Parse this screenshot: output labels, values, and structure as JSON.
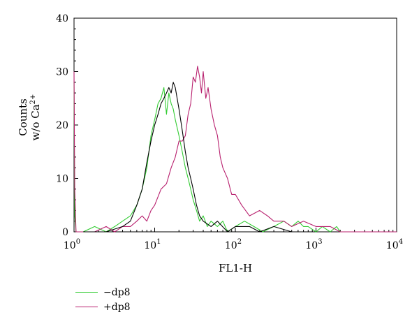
{
  "chart_data": {
    "type": "line",
    "xlabel": "FL1-H",
    "ylabel_line1": "Counts",
    "ylabel_line2_main": "w/o Ca",
    "ylabel_line2_sup": "2+",
    "x_scale": "log",
    "xlim": [
      1,
      10000
    ],
    "ylim": [
      0,
      40
    ],
    "y_ticks": [
      "0",
      "10",
      "20",
      "30",
      "40"
    ],
    "x_ticks": [
      {
        "base": "10",
        "exp": "0",
        "value": 1
      },
      {
        "base": "10",
        "exp": "1",
        "value": 10
      },
      {
        "base": "10",
        "exp": "2",
        "value": 100
      },
      {
        "base": "10",
        "exp": "3",
        "value": 1000
      },
      {
        "base": "10",
        "exp": "4",
        "value": 10000
      }
    ],
    "series": [
      {
        "name": "−dp8",
        "color": "#33cc33",
        "x": [
          1.0,
          1.02,
          1.06,
          1.3,
          1.8,
          2.5,
          3.2,
          4.0,
          5.0,
          6.0,
          7.0,
          8.0,
          9.0,
          10.0,
          11.0,
          12.0,
          13.0,
          14.0,
          15.0,
          16.0,
          17.0,
          18.0,
          20.0,
          22.0,
          24.0,
          26.0,
          28.0,
          30.0,
          33.0,
          36.0,
          40.0,
          45.0,
          50.0,
          60.0,
          70.0,
          80.0,
          100.0,
          130.0,
          170.0,
          220.0,
          300.0,
          400.0,
          500.0,
          600.0,
          700.0,
          800.0,
          1000.0,
          1200.0,
          1500.0,
          1800.0,
          2000.0
        ],
        "y": [
          28,
          3,
          0,
          0,
          1,
          0,
          1,
          2,
          3,
          5,
          8,
          12,
          18,
          21,
          24,
          25,
          27,
          22,
          26,
          24,
          23,
          21,
          18,
          15,
          12,
          10,
          8,
          6,
          4,
          2,
          3,
          1,
          2,
          1,
          2,
          0,
          1,
          2,
          1,
          0,
          1,
          2,
          1,
          2,
          1,
          1,
          0,
          1,
          0,
          1,
          0
        ]
      },
      {
        "name": "+dp8",
        "color": "#b8206e",
        "x": [
          1.0,
          1.02,
          1.06,
          1.3,
          1.8,
          2.5,
          3.2,
          4.0,
          5.0,
          6.0,
          7.0,
          8.0,
          9.0,
          10.0,
          12.0,
          14.0,
          16.0,
          18.0,
          20.0,
          22.0,
          24.0,
          26.0,
          28.0,
          30.0,
          32.0,
          34.0,
          36.0,
          38.0,
          40.0,
          43.0,
          46.0,
          50.0,
          55.0,
          60.0,
          65.0,
          70.0,
          80.0,
          90.0,
          100.0,
          120.0,
          150.0,
          200.0,
          250.0,
          300.0,
          400.0,
          500.0,
          700.0,
          1000.0,
          1500.0,
          2000.0,
          3000.0,
          5000.0,
          10000.0
        ],
        "y": [
          30,
          8,
          0,
          0,
          0,
          1,
          0,
          1,
          1,
          2,
          3,
          2,
          4,
          5,
          8,
          9,
          12,
          14,
          17,
          17,
          18,
          22,
          24,
          29,
          28,
          31,
          29,
          26,
          30,
          25,
          27,
          23,
          20,
          18,
          14,
          12,
          10,
          7,
          7,
          5,
          3,
          4,
          3,
          2,
          2,
          1,
          2,
          1,
          1,
          0,
          0,
          0,
          0
        ]
      },
      {
        "name": "",
        "color": "#000000",
        "x": [
          1.3,
          2.5,
          4.0,
          5.0,
          6.0,
          7.0,
          8.0,
          9.0,
          10.0,
          11.0,
          12.0,
          13.0,
          14.0,
          15.0,
          16.0,
          17.0,
          18.0,
          20.0,
          22.0,
          24.0,
          26.0,
          28.0,
          30.0,
          33.0,
          36.0,
          40.0,
          50.0,
          60.0,
          80.0,
          100.0,
          150.0,
          200.0,
          300.0,
          500.0
        ],
        "y": [
          0,
          0,
          1,
          2,
          5,
          8,
          13,
          17,
          20,
          22,
          24,
          25,
          26,
          27,
          26,
          28,
          27,
          23,
          19,
          15,
          12,
          10,
          8,
          5,
          3,
          2,
          1,
          2,
          0,
          1,
          1,
          0,
          1,
          0
        ]
      }
    ],
    "legend": [
      {
        "label": "−dp8",
        "color": "#33cc33"
      },
      {
        "label": "+dp8",
        "color": "#b8206e"
      }
    ],
    "grid": false
  }
}
